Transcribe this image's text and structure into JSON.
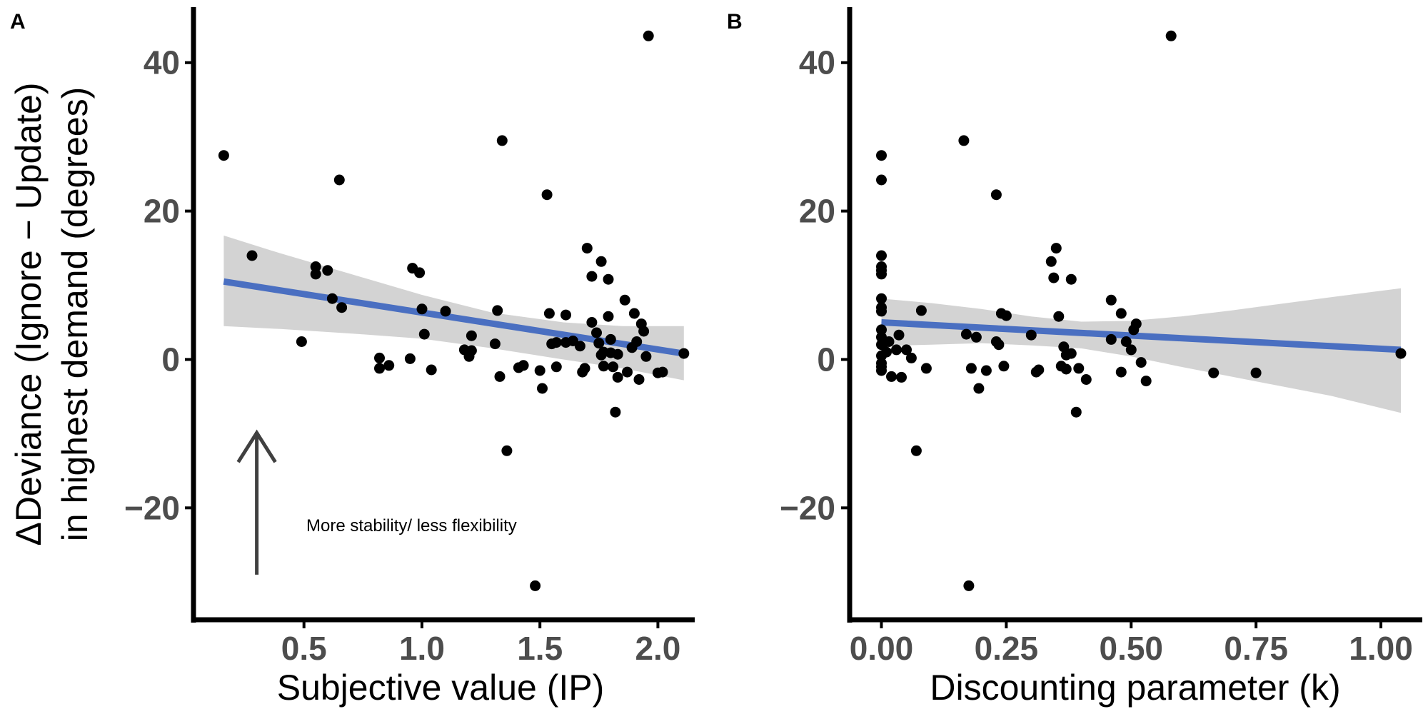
{
  "figure": {
    "y_title_line1": "ΔDeviance (Ignore −  Update)",
    "y_title_line2": "in highest demand (degrees)"
  },
  "colors": {
    "point": "#000000",
    "fit_line": "#4A6FC1",
    "ci_band": "#D3D3D3",
    "axis": "#000000",
    "tick_label": "#4d4d4d",
    "arrow": "#404040"
  },
  "chart_data": [
    {
      "type": "scatter",
      "panel": "A",
      "xlabel": "Subjective value (IP)",
      "ylabel": "ΔDeviance (Ignore −  Update) in highest demand (degrees)",
      "xlim": [
        0.05,
        2.15
      ],
      "ylim": [
        -34.5,
        47
      ],
      "xticks": [
        0.5,
        1.0,
        1.5,
        2.0
      ],
      "xtick_labels": [
        "0.5",
        "1.0",
        "1.5",
        "2.0"
      ],
      "yticks": [
        -20,
        0,
        20,
        40
      ],
      "ytick_labels": [
        "−20",
        "0",
        "20",
        "40"
      ],
      "grid": false,
      "x": [
        0.16,
        0.28,
        0.49,
        0.55,
        0.55,
        0.6,
        0.62,
        0.65,
        0.66,
        0.82,
        0.82,
        0.86,
        0.95,
        0.96,
        0.99,
        1.0,
        1.01,
        1.04,
        1.1,
        1.18,
        1.2,
        1.21,
        1.21,
        1.31,
        1.32,
        1.33,
        1.34,
        1.36,
        1.41,
        1.43,
        1.48,
        1.5,
        1.51,
        1.53,
        1.54,
        1.55,
        1.57,
        1.57,
        1.61,
        1.61,
        1.64,
        1.67,
        1.68,
        1.69,
        1.7,
        1.72,
        1.72,
        1.74,
        1.75,
        1.76,
        1.76,
        1.77,
        1.77,
        1.79,
        1.79,
        1.8,
        1.8,
        1.81,
        1.82,
        1.83,
        1.83,
        1.86,
        1.87,
        1.89,
        1.9,
        1.91,
        1.92,
        1.93,
        1.94,
        1.95,
        1.96,
        2.0,
        2.02,
        2.11
      ],
      "y": [
        27.5,
        14.0,
        2.4,
        12.5,
        11.5,
        12.0,
        8.2,
        24.2,
        7.0,
        0.2,
        -1.2,
        -0.8,
        0.1,
        12.3,
        11.7,
        6.8,
        3.4,
        -1.4,
        6.5,
        1.3,
        0.4,
        1.2,
        3.2,
        2.1,
        6.6,
        -2.3,
        29.5,
        -12.3,
        -1.1,
        -0.8,
        -30.5,
        -1.5,
        -3.9,
        22.2,
        6.2,
        2.1,
        -1.0,
        2.3,
        6.0,
        2.3,
        2.5,
        1.8,
        -1.7,
        -1.2,
        15.0,
        11.2,
        5.0,
        3.6,
        2.2,
        13.2,
        0.6,
        1.0,
        -0.9,
        10.8,
        5.8,
        2.7,
        0.9,
        -1.0,
        -7.1,
        -2.4,
        0.7,
        8.0,
        -1.7,
        1.6,
        6.2,
        2.4,
        -2.7,
        4.8,
        3.8,
        0.4,
        43.6,
        -1.8,
        -1.7,
        0.8
      ],
      "fit": {
        "x": [
          0.16,
          2.11
        ],
        "y": [
          10.5,
          0.8
        ]
      },
      "ci": {
        "x": [
          0.16,
          0.4,
          0.7,
          1.0,
          1.3,
          1.6,
          1.85,
          2.11
        ],
        "lower": [
          4.5,
          4.1,
          3.5,
          2.8,
          1.5,
          0.0,
          -1.2,
          -2.8
        ],
        "upper": [
          16.7,
          14.3,
          11.5,
          8.7,
          6.3,
          5.0,
          4.5,
          4.5
        ]
      },
      "annotation": {
        "text": "More stability/ less flexibility",
        "arrow_x": 0.3,
        "arrow_from_y": -29,
        "arrow_to_y": -9.5,
        "text_x": 0.51,
        "text_y": -22.3
      }
    },
    {
      "type": "scatter",
      "panel": "B",
      "xlabel": "Discounting parameter (k)",
      "ylabel": "",
      "xlim": [
        -0.055,
        1.08
      ],
      "ylim": [
        -34.5,
        47
      ],
      "xticks": [
        0.0,
        0.25,
        0.5,
        0.75,
        1.0
      ],
      "xtick_labels": [
        "0.00",
        "0.25",
        "0.50",
        "0.75",
        "1.00"
      ],
      "yticks": [
        -20,
        0,
        20,
        40
      ],
      "ytick_labels": [
        "−20",
        "0",
        "20",
        "40"
      ],
      "grid": false,
      "x": [
        0.0,
        0.0,
        0.0,
        0.0,
        0.0,
        0.0,
        0.0,
        0.0,
        0.0,
        0.0,
        0.0,
        0.0,
        0.0,
        0.0,
        0.0,
        0.0,
        0.005,
        0.01,
        0.015,
        0.02,
        0.03,
        0.035,
        0.04,
        0.05,
        0.06,
        0.07,
        0.08,
        0.09,
        0.165,
        0.17,
        0.175,
        0.18,
        0.19,
        0.195,
        0.21,
        0.23,
        0.23,
        0.235,
        0.24,
        0.245,
        0.25,
        0.3,
        0.31,
        0.315,
        0.34,
        0.345,
        0.35,
        0.355,
        0.36,
        0.365,
        0.37,
        0.37,
        0.38,
        0.38,
        0.39,
        0.395,
        0.41,
        0.46,
        0.46,
        0.48,
        0.48,
        0.49,
        0.5,
        0.505,
        0.51,
        0.52,
        0.53,
        0.58,
        0.665,
        0.75,
        1.04
      ],
      "y": [
        27.5,
        24.2,
        14.0,
        12.5,
        12.0,
        11.5,
        8.2,
        7.0,
        6.5,
        4.0,
        3.0,
        2.0,
        0.5,
        -0.5,
        -1.0,
        -1.5,
        2.2,
        1.0,
        2.4,
        -2.3,
        1.3,
        3.3,
        -2.4,
        1.3,
        0.2,
        -12.3,
        6.6,
        -1.2,
        29.5,
        3.4,
        -30.5,
        -1.2,
        3.0,
        -3.9,
        -1.5,
        22.2,
        2.4,
        2.0,
        6.2,
        -0.9,
        5.9,
        3.3,
        -1.7,
        -1.4,
        13.2,
        11.0,
        15.0,
        5.8,
        -0.9,
        1.7,
        0.6,
        -1.3,
        10.8,
        0.8,
        -7.1,
        -1.2,
        -2.7,
        8.0,
        2.7,
        -1.7,
        6.2,
        2.4,
        1.3,
        4.0,
        4.8,
        -0.4,
        -2.9,
        43.6,
        -1.8,
        -1.8,
        0.8
      ],
      "fit": {
        "x": [
          0.0,
          1.04
        ],
        "y": [
          5.0,
          1.3
        ]
      },
      "ci": {
        "x": [
          0.0,
          0.1,
          0.2,
          0.3,
          0.4,
          0.5,
          0.6,
          0.7,
          0.8,
          0.9,
          1.04
        ],
        "lower": [
          1.8,
          2.0,
          2.2,
          1.9,
          1.5,
          0.4,
          -1.0,
          -2.3,
          -3.6,
          -4.9,
          -7.2
        ],
        "upper": [
          8.2,
          7.6,
          6.8,
          5.8,
          5.1,
          5.2,
          5.8,
          6.6,
          7.5,
          8.4,
          9.6
        ]
      }
    }
  ]
}
